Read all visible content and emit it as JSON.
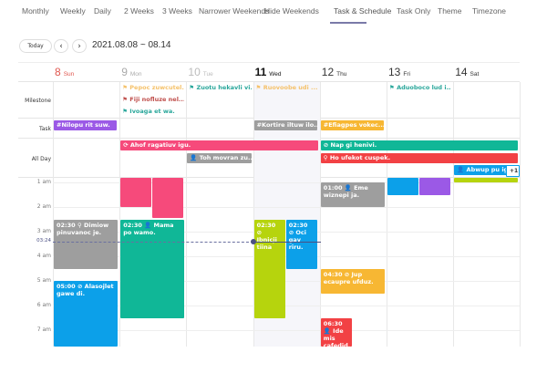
{
  "nav": {
    "tabs": [
      "Monthly",
      "Weekly",
      "Daily",
      "2 Weeks",
      "3 Weeks",
      "Narrower Weekends",
      "Hide Weekends",
      "Task & Schedule",
      "Task Only",
      "Theme",
      "Timezone"
    ],
    "active": "Task & Schedule"
  },
  "toolbar": {
    "today": "Today",
    "prev": "‹",
    "next": "›",
    "range": "2021.08.08 ~ 08.14"
  },
  "days": [
    {
      "num": "8",
      "name": "Sun",
      "color": "#e0574f"
    },
    {
      "num": "9",
      "name": "Mon",
      "color": "#aaaaaa"
    },
    {
      "num": "10",
      "name": "Tue",
      "color": "#bbbbbb"
    },
    {
      "num": "11",
      "name": "Wed",
      "color": "#111111"
    },
    {
      "num": "12",
      "name": "Thu",
      "color": "#333333"
    },
    {
      "num": "13",
      "name": "Fri",
      "color": "#333333"
    },
    {
      "num": "14",
      "name": "Sat",
      "color": "#333333"
    }
  ],
  "rows": {
    "milestone": "Milestone",
    "task": "Task",
    "allday": "All Day"
  },
  "milestones": [
    {
      "day": 1,
      "slot": 0,
      "text": "Pepoc zuwcutel...",
      "color": "#f5c26b"
    },
    {
      "day": 1,
      "slot": 1,
      "text": "Fiji nofluze nel...",
      "color": "#c0504d"
    },
    {
      "day": 1,
      "slot": 2,
      "text": "Ivoaga et wa.",
      "color": "#2aa79b"
    },
    {
      "day": 2,
      "slot": 0,
      "text": "Zuotu hekavli vi.",
      "color": "#2aa79b"
    },
    {
      "day": 3,
      "slot": 0,
      "text": "Ruovoobe udi ...",
      "color": "#f5c26b"
    },
    {
      "day": 5,
      "slot": 0,
      "text": "Aduoboco lud i...",
      "color": "#2aa79b"
    }
  ],
  "tasks": [
    {
      "day": 0,
      "text": "#Nilopu rit suw.",
      "color": "#9b59e6"
    },
    {
      "day": 3,
      "text": "#Kortire iltuw ilo...",
      "color": "#9e9e9e"
    },
    {
      "day": 4,
      "text": "#Efiagpes vokec...",
      "color": "#f7b733"
    }
  ],
  "allday": [
    {
      "start": 1,
      "end": 3,
      "slot": 0,
      "text": "⟳ Ahof ragatiuv igu.",
      "color": "#f64a7b"
    },
    {
      "start": 2,
      "end": 2,
      "slot": 1,
      "text": "👤 Toh movran zu...",
      "color": "#9e9e9e"
    },
    {
      "start": 4,
      "end": 6,
      "slot": 0,
      "text": "⊘ Nap gi henivi.",
      "color": "#10b797"
    },
    {
      "start": 4,
      "end": 6,
      "slot": 1,
      "text": "⚲ Ho ufekot cuspek.",
      "color": "#f24144"
    },
    {
      "start": 6,
      "end": 6,
      "slot": 2,
      "text": "👤 Abwup pu iga",
      "color": "#0ca0e9"
    }
  ],
  "more": "+1",
  "hours": [
    "1 am",
    "2 am",
    "3 am",
    "4 am",
    "5 am",
    "6 am",
    "7 am"
  ],
  "now": "03:24",
  "timed": [
    {
      "day": 0,
      "col": 0,
      "cols": 1,
      "s": 2.5,
      "e": 4.5,
      "text": "02:30 ⚲ Dimiow pinuvanoc je.",
      "color": "#9e9e9e"
    },
    {
      "day": 0,
      "col": 0,
      "cols": 1,
      "s": 5,
      "e": 7.8,
      "text": "05:00 ⊘ Alasojlet gawe di.",
      "color": "#0ca0e9"
    },
    {
      "day": 1,
      "col": 0,
      "cols": 2,
      "s": 0.8,
      "e": 2,
      "text": "",
      "color": "#f64a7b"
    },
    {
      "day": 1,
      "col": 1,
      "cols": 2,
      "s": 0.8,
      "e": 2.45,
      "text": "",
      "color": "#f64a7b"
    },
    {
      "day": 1,
      "col": 0,
      "cols": 1,
      "s": 2.5,
      "e": 6.5,
      "text": "02:30 👤 Mama po wamo.",
      "color": "#10b797"
    },
    {
      "day": 3,
      "col": 0,
      "cols": 2,
      "s": 2.5,
      "e": 6.5,
      "text": "02:30 ⊘ Ibnicji tiina",
      "color": "#b6d40d"
    },
    {
      "day": 3,
      "col": 1,
      "cols": 2,
      "s": 2.5,
      "e": 4.5,
      "text": "02:30 ⊘ Oci gav riru.",
      "color": "#0ca0e9"
    },
    {
      "day": 4,
      "col": 0,
      "cols": 1,
      "s": 1,
      "e": 2,
      "text": "01:00 👤 Eme wiznepi ja.",
      "color": "#9e9e9e"
    },
    {
      "day": 4,
      "col": 0,
      "cols": 1,
      "s": 4.5,
      "e": 5.5,
      "text": "04:30 ⊘ Jup ecaupre ufduz.",
      "color": "#f7b733"
    },
    {
      "day": 4,
      "col": 0,
      "cols": 2,
      "s": 6.5,
      "e": 7.8,
      "text": "06:30 👤 Ide mis cafedid.",
      "color": "#f24144"
    },
    {
      "day": 5,
      "col": 0,
      "cols": 2,
      "s": 0.8,
      "e": 1.5,
      "text": "",
      "color": "#0ca0e9"
    },
    {
      "day": 5,
      "col": 1,
      "cols": 2,
      "s": 0.8,
      "e": 1.5,
      "text": "",
      "color": "#9b59e6"
    },
    {
      "day": 6,
      "col": 0,
      "cols": 1,
      "s": 0.8,
      "e": 1,
      "text": "",
      "color": "#b6d40d"
    }
  ]
}
